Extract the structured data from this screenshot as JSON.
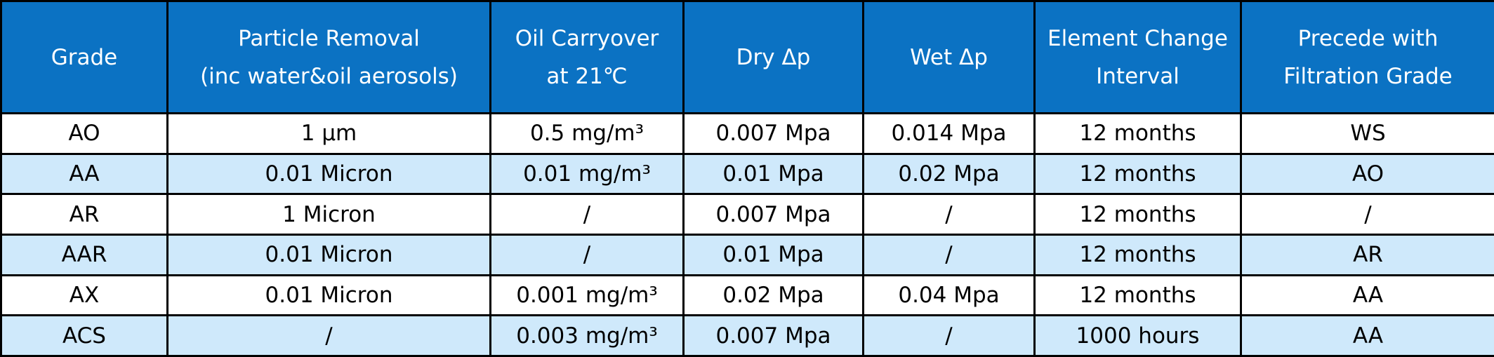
{
  "colors": {
    "header_bg": "#0b72c3",
    "header_text": "#ffffff",
    "row_alt": "#cfe9fb",
    "row_base": "#ffffff",
    "border": "#000000"
  },
  "table": {
    "headers": [
      {
        "line1": "Grade",
        "line2": ""
      },
      {
        "line1": "Particle Removal",
        "line2": "(inc water&oil aerosols)"
      },
      {
        "line1": "Oil Carryover",
        "line2": "at 21℃"
      },
      {
        "line1": "Dry Δp",
        "line2": ""
      },
      {
        "line1": "Wet Δp",
        "line2": ""
      },
      {
        "line1": "Element Change",
        "line2": "Interval"
      },
      {
        "line1": "Precede with",
        "line2": "Filtration Grade"
      }
    ],
    "rows": [
      [
        "AO",
        "1 μm",
        "0.5 mg/m³",
        "0.007 Mpa",
        "0.014 Mpa",
        "12 months",
        "WS"
      ],
      [
        "AA",
        "0.01 Micron",
        "0.01 mg/m³",
        "0.01 Mpa",
        "0.02 Mpa",
        "12 months",
        "AO"
      ],
      [
        "AR",
        "1 Micron",
        "/",
        "0.007 Mpa",
        "/",
        "12 months",
        "/"
      ],
      [
        "AAR",
        "0.01 Micron",
        "/",
        "0.01 Mpa",
        "/",
        "12 months",
        "AR"
      ],
      [
        "AX",
        "0.01 Micron",
        "0.001 mg/m³",
        "0.02 Mpa",
        "0.04 Mpa",
        "12 months",
        "AA"
      ],
      [
        "ACS",
        "/",
        "0.003 mg/m³",
        "0.007 Mpa",
        "/",
        "1000 hours",
        "AA"
      ]
    ]
  }
}
